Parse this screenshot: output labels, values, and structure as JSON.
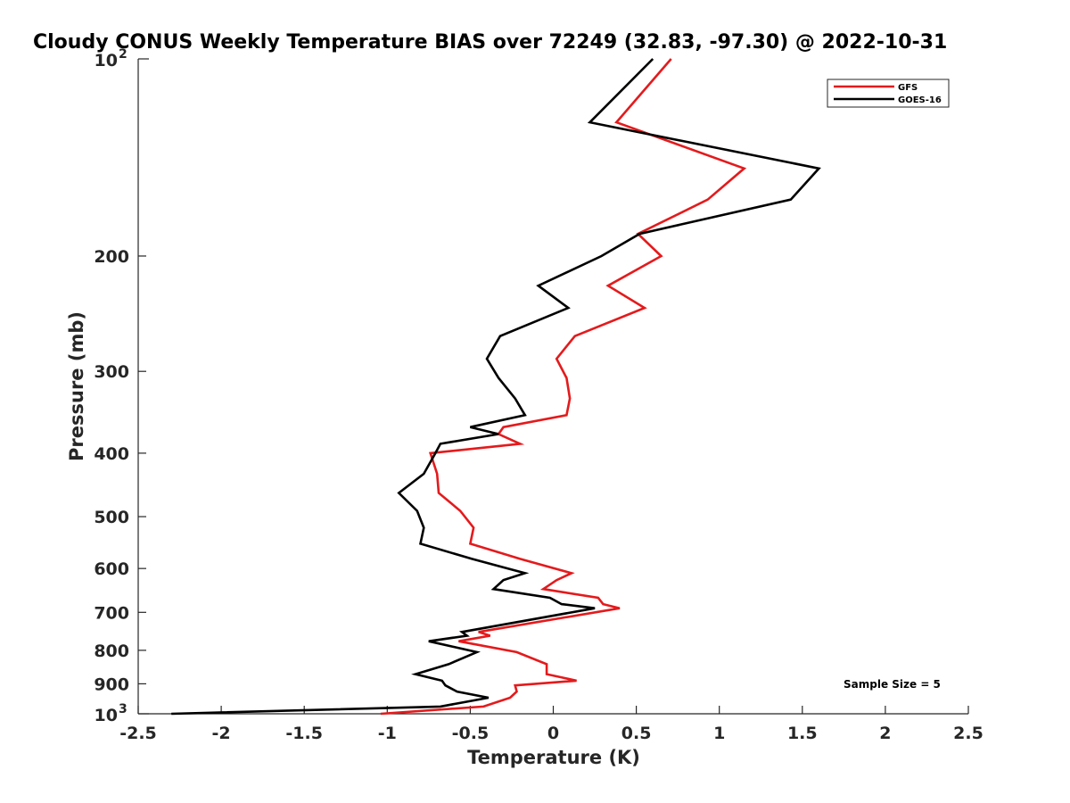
{
  "chart_data": {
    "type": "line",
    "title": "Cloudy CONUS Weekly Temperature BIAS over 72249 (32.83, -97.30) @ 2022-10-31",
    "xlabel": "Temperature (K)",
    "ylabel": "Pressure (mb)",
    "xlim": [
      -2.5,
      2.5
    ],
    "ylim": [
      1000,
      100
    ],
    "y_scale": "log",
    "y_reversed": true,
    "grid": false,
    "legend_position": "top-right",
    "x_ticks": [
      -2.5,
      -2,
      -1.5,
      -1,
      -0.5,
      0,
      0.5,
      1,
      1.5,
      2,
      2.5
    ],
    "x_tick_labels": [
      "-2.5",
      "-2",
      "-1.5",
      "-1",
      "-0.5",
      "0",
      "0.5",
      "1",
      "1.5",
      "2",
      "2.5"
    ],
    "y_ticks": [
      200,
      300,
      400,
      500,
      600,
      700,
      800,
      900
    ],
    "y_tick_labels": [
      "200",
      "300",
      "400",
      "500",
      "600",
      "700",
      "800",
      "900"
    ],
    "y_decade_labels": [
      {
        "value": 100,
        "base": "10",
        "exp": "2"
      },
      {
        "value": 1000,
        "base": "10",
        "exp": "3"
      }
    ],
    "annotation": "Sample Size = 5",
    "series": [
      {
        "name": "GFS",
        "color": "#e41a1c",
        "x": [
          0.71,
          0.38,
          1.15,
          0.93,
          0.51,
          0.65,
          0.33,
          0.55,
          0.13,
          0.02,
          0.08,
          0.1,
          0.08,
          -0.3,
          -0.33,
          -0.2,
          -0.74,
          -0.7,
          -0.69,
          -0.56,
          -0.48,
          -0.5,
          -0.2,
          0.11,
          0.02,
          -0.06,
          0.27,
          0.3,
          0.4,
          -0.45,
          -0.38,
          -0.57,
          -0.22,
          -0.04,
          -0.04,
          0.14,
          -0.23,
          -0.22,
          -0.26,
          -0.42,
          -1.04
        ],
        "y": [
          100,
          125,
          147,
          164,
          185,
          200,
          222,
          240,
          265,
          287,
          307,
          330,
          350,
          365,
          374,
          387,
          400,
          430,
          460,
          490,
          520,
          550,
          580,
          610,
          625,
          645,
          665,
          680,
          690,
          750,
          760,
          775,
          805,
          840,
          870,
          890,
          905,
          925,
          945,
          975,
          1000
        ]
      },
      {
        "name": "GOES-16",
        "color": "#000000",
        "x": [
          0.6,
          0.22,
          1.6,
          1.43,
          0.52,
          0.29,
          -0.09,
          0.09,
          -0.32,
          -0.4,
          -0.33,
          -0.23,
          -0.17,
          -0.5,
          -0.33,
          -0.68,
          -0.71,
          -0.78,
          -0.93,
          -0.82,
          -0.78,
          -0.8,
          -0.49,
          -0.17,
          -0.3,
          -0.36,
          -0.02,
          0.05,
          0.25,
          -0.55,
          -0.52,
          -0.75,
          -0.46,
          -0.63,
          -0.83,
          -0.67,
          -0.65,
          -0.58,
          -0.39,
          -0.68,
          -2.3
        ],
        "y": [
          100,
          125,
          147,
          164,
          185,
          200,
          222,
          240,
          265,
          287,
          307,
          330,
          350,
          365,
          374,
          387,
          400,
          430,
          460,
          490,
          520,
          550,
          580,
          610,
          625,
          645,
          665,
          680,
          690,
          750,
          760,
          775,
          805,
          840,
          870,
          890,
          905,
          925,
          945,
          975,
          1000
        ]
      }
    ]
  }
}
